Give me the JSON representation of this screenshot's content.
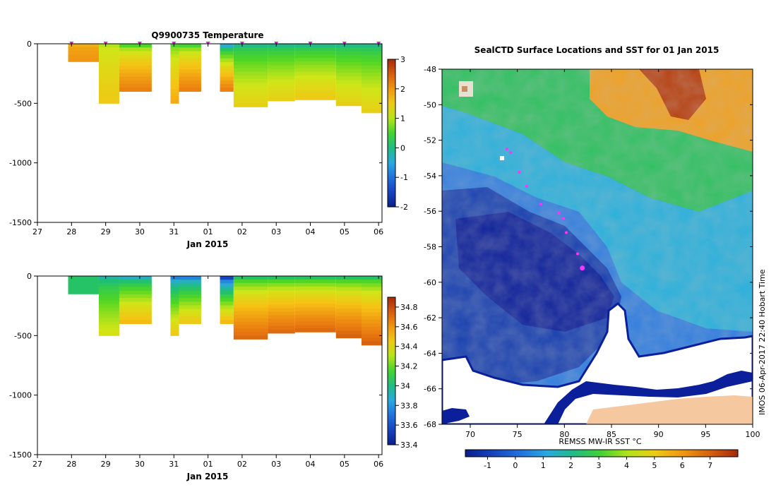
{
  "chart_data": [
    {
      "type": "heatmap",
      "title": "Q9900735  Temperature",
      "xlabel": "Jan 2015",
      "x_ticks": [
        "27",
        "28",
        "29",
        "30",
        "31",
        "01",
        "02",
        "03",
        "04",
        "05",
        "06"
      ],
      "y_ticks": [
        "0",
        "-500",
        "-1000",
        "-1500"
      ],
      "ylim": [
        -1500,
        0
      ],
      "xlim_days": [
        27,
        37.1
      ],
      "surface_marker_days": [
        28,
        29,
        30,
        31,
        32,
        33,
        34,
        35,
        36,
        37
      ],
      "profiles": [
        {
          "start": 27.9,
          "end": 28.8,
          "depth": 150,
          "surface": 1.8,
          "deep": 2.0
        },
        {
          "start": 28.8,
          "end": 29.4,
          "depth": 500,
          "surface": 1.0,
          "deep": 1.5
        },
        {
          "start": 29.4,
          "end": 30.35,
          "depth": 400,
          "surface": 0.6,
          "deep": 2.2
        },
        {
          "start": 30.9,
          "end": 31.15,
          "depth": 500,
          "surface": 0.6,
          "deep": 1.8
        },
        {
          "start": 31.15,
          "end": 31.8,
          "depth": 400,
          "surface": 0.5,
          "deep": 2.2
        },
        {
          "start": 32.35,
          "end": 32.75,
          "depth": 400,
          "surface": -0.4,
          "deep": 2.2
        },
        {
          "start": 32.75,
          "end": 33.75,
          "depth": 530,
          "surface": 0.0,
          "deep": 1.4
        },
        {
          "start": 33.75,
          "end": 34.55,
          "depth": 480,
          "surface": 0.0,
          "deep": 1.4
        },
        {
          "start": 34.55,
          "end": 35.75,
          "depth": 470,
          "surface": 0.0,
          "deep": 1.5
        },
        {
          "start": 35.75,
          "end": 36.5,
          "depth": 520,
          "surface": 0.0,
          "deep": 1.4
        },
        {
          "start": 36.5,
          "end": 37.1,
          "depth": 580,
          "surface": 0.0,
          "deep": 1.4
        }
      ],
      "colorbar": {
        "min": -2,
        "max": 3,
        "ticks": [
          "-2",
          "-1",
          "0",
          "1",
          "2",
          "3"
        ]
      }
    },
    {
      "type": "heatmap",
      "title": "",
      "xlabel": "Jan 2015",
      "x_ticks": [
        "27",
        "28",
        "29",
        "30",
        "31",
        "01",
        "02",
        "03",
        "04",
        "05",
        "06"
      ],
      "y_ticks": [
        "0",
        "-500",
        "-1000",
        "-1500"
      ],
      "ylim": [
        -1500,
        0
      ],
      "xlim_days": [
        27,
        37.1
      ],
      "profiles": [
        {
          "start": 27.9,
          "end": 28.8,
          "depth": 150,
          "surface": 34.05,
          "deep": 34.05
        },
        {
          "start": 28.8,
          "end": 29.4,
          "depth": 500,
          "surface": 33.95,
          "deep": 34.35
        },
        {
          "start": 29.4,
          "end": 30.35,
          "depth": 400,
          "surface": 33.9,
          "deep": 34.5
        },
        {
          "start": 30.9,
          "end": 31.15,
          "depth": 500,
          "surface": 33.75,
          "deep": 34.45
        },
        {
          "start": 31.15,
          "end": 31.8,
          "depth": 400,
          "surface": 33.75,
          "deep": 34.45
        },
        {
          "start": 32.35,
          "end": 32.75,
          "depth": 400,
          "surface": 33.55,
          "deep": 34.5
        },
        {
          "start": 32.75,
          "end": 33.75,
          "depth": 530,
          "surface": 34.05,
          "deep": 34.72
        },
        {
          "start": 33.75,
          "end": 34.55,
          "depth": 480,
          "surface": 34.05,
          "deep": 34.72
        },
        {
          "start": 34.55,
          "end": 35.75,
          "depth": 470,
          "surface": 34.05,
          "deep": 34.72
        },
        {
          "start": 35.75,
          "end": 36.5,
          "depth": 520,
          "surface": 34.05,
          "deep": 34.74
        },
        {
          "start": 36.5,
          "end": 37.1,
          "depth": 580,
          "surface": 34.05,
          "deep": 34.74
        }
      ],
      "colorbar": {
        "min": 33.4,
        "max": 34.9,
        "ticks": [
          "33.4",
          "33.6",
          "33.8",
          "34",
          "34.2",
          "34.4",
          "34.6",
          "34.8"
        ]
      }
    },
    {
      "type": "heatmap",
      "title": "SealCTD Surface Locations and SST for 01 Jan 2015",
      "xlabel": "REMSS MW-IR SST °C",
      "x_ticks": [
        "70",
        "75",
        "80",
        "85",
        "90",
        "95",
        "100"
      ],
      "y_ticks": [
        "-48",
        "-50",
        "-52",
        "-54",
        "-56",
        "-58",
        "-60",
        "-62",
        "-64",
        "-66",
        "-68"
      ],
      "xlim": [
        67,
        100
      ],
      "ylim": [
        -68,
        -48
      ],
      "track_color": "#ff33ff",
      "track": [
        {
          "lon": 73.9,
          "lat": -52.5
        },
        {
          "lon": 74.3,
          "lat": -52.7
        },
        {
          "lon": 75.2,
          "lat": -53.8
        },
        {
          "lon": 76.0,
          "lat": -54.6
        },
        {
          "lon": 77.5,
          "lat": -55.6
        },
        {
          "lon": 79.4,
          "lat": -56.1
        },
        {
          "lon": 79.9,
          "lat": -56.4
        },
        {
          "lon": 80.2,
          "lat": -57.2
        },
        {
          "lon": 81.4,
          "lat": -58.4
        },
        {
          "lon": 81.9,
          "lat": -59.2
        }
      ],
      "colorbar": {
        "min": -1.8,
        "max": 8,
        "ticks": [
          "-1",
          "0",
          "1",
          "2",
          "3",
          "4",
          "5",
          "6",
          "7"
        ]
      }
    }
  ],
  "credit": "IMOS 06-Apr-2017 22:40 Hobart Time"
}
